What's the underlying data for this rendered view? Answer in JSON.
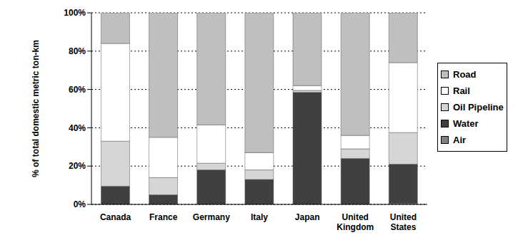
{
  "chart_data": {
    "type": "bar",
    "stacked": true,
    "y_label": "% of total domestic metric ton-km",
    "categories": [
      "Canada",
      "France",
      "Germany",
      "Italy",
      "Japan",
      "United Kingdom",
      "United States"
    ],
    "series": [
      {
        "name": "Road",
        "color": "#bfbfbf",
        "values": [
          16,
          65,
          58.5,
          73,
          38,
          64,
          26
        ]
      },
      {
        "name": "Rail",
        "color": "#ffffff",
        "values": [
          51,
          21,
          20,
          9,
          2.5,
          7,
          36.5
        ]
      },
      {
        "name": "Oil Pipeline",
        "color": "#d6d6d6",
        "values": [
          23.5,
          9,
          3.5,
          5,
          1,
          5,
          16.5
        ]
      },
      {
        "name": "Water",
        "color": "#404040",
        "values": [
          9.5,
          5,
          18,
          13,
          58.5,
          24,
          20.5
        ]
      },
      {
        "name": "Air",
        "color": "#808080",
        "values": [
          0,
          0,
          0,
          0,
          0,
          0,
          0.5
        ]
      }
    ],
    "ylim": [
      0,
      100
    ],
    "yticks": [
      {
        "value": 0,
        "label": "0%"
      },
      {
        "value": 20,
        "label": "20%"
      },
      {
        "value": 40,
        "label": "40%"
      },
      {
        "value": 60,
        "label": "60%"
      },
      {
        "value": 80,
        "label": "80%"
      },
      {
        "value": 100,
        "label": "100%"
      }
    ],
    "grid": true,
    "legend": "right"
  }
}
